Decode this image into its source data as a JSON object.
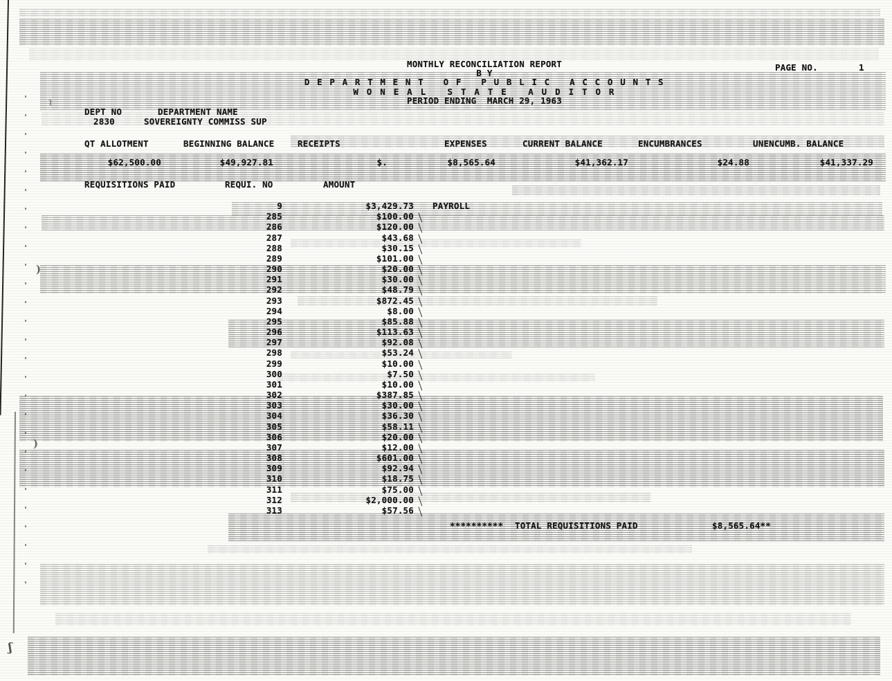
{
  "header": {
    "title": "MONTHLY RECONCILIATION REPORT",
    "by_line": "B Y",
    "department_line": "D E P A R T M E N T   O F   P U B L I C   A C C O U N T S",
    "auditor_line": "W O N E A L   S T A T E   A U D I T O R",
    "period_line": "PERIOD ENDING  MARCH 29, 1963",
    "page_no_label": "PAGE NO.",
    "page_no": "1"
  },
  "department": {
    "dept_no_label": "DEPT NO",
    "dept_name_label": "DEPARTMENT NAME",
    "dept_no": "2830",
    "dept_name": "SOVEREIGNTY COMMISS SUP"
  },
  "summary": {
    "columns": [
      {
        "label": "QT ALLOTMENT",
        "value": "$62,500.00"
      },
      {
        "label": "BEGINNING BALANCE",
        "value": "$49,927.81"
      },
      {
        "label": "RECEIPTS",
        "value": "$."
      },
      {
        "label": "EXPENSES",
        "value": "$8,565.64"
      },
      {
        "label": "CURRENT BALANCE",
        "value": "$41,362.17"
      },
      {
        "label": "ENCUMBRANCES",
        "value": "$24.88"
      },
      {
        "label": "UNENCUMB. BALANCE",
        "value": "$41,337.29"
      }
    ]
  },
  "requisitions": {
    "section_label": "REQUISITIONS PAID",
    "no_header": "REQUI. NO",
    "amount_header": "AMOUNT",
    "rows": [
      {
        "no": "9",
        "amount": "$3,429.73",
        "note": "PAYROLL",
        "tick": false
      },
      {
        "no": "285",
        "amount": "$100.00",
        "note": "",
        "tick": true
      },
      {
        "no": "286",
        "amount": "$120.00",
        "note": "",
        "tick": true
      },
      {
        "no": "287",
        "amount": "$43.68",
        "note": "",
        "tick": true
      },
      {
        "no": "288",
        "amount": "$30.15",
        "note": "",
        "tick": true
      },
      {
        "no": "289",
        "amount": "$101.00",
        "note": "",
        "tick": true
      },
      {
        "no": "290",
        "amount": "$20.00",
        "note": "",
        "tick": true
      },
      {
        "no": "291",
        "amount": "$30.00",
        "note": "",
        "tick": true
      },
      {
        "no": "292",
        "amount": "$48.79",
        "note": "",
        "tick": true
      },
      {
        "no": "293",
        "amount": "$872.45",
        "note": "",
        "tick": true
      },
      {
        "no": "294",
        "amount": "$8.00",
        "note": "",
        "tick": true
      },
      {
        "no": "295",
        "amount": "$85.88",
        "note": "",
        "tick": true
      },
      {
        "no": "296",
        "amount": "$113.63",
        "note": "",
        "tick": true
      },
      {
        "no": "297",
        "amount": "$92.08",
        "note": "",
        "tick": true
      },
      {
        "no": "298",
        "amount": "$53.24",
        "note": "",
        "tick": true
      },
      {
        "no": "299",
        "amount": "$10.00",
        "note": "",
        "tick": true
      },
      {
        "no": "300",
        "amount": "$7.50",
        "note": "",
        "tick": true
      },
      {
        "no": "301",
        "amount": "$10.00",
        "note": "",
        "tick": true
      },
      {
        "no": "302",
        "amount": "$387.85",
        "note": "",
        "tick": true
      },
      {
        "no": "303",
        "amount": "$30.00",
        "note": "",
        "tick": true
      },
      {
        "no": "304",
        "amount": "$36.30",
        "note": "",
        "tick": true
      },
      {
        "no": "305",
        "amount": "$58.11",
        "note": "",
        "tick": true
      },
      {
        "no": "306",
        "amount": "$20.00",
        "note": "",
        "tick": true
      },
      {
        "no": "307",
        "amount": "$12.00",
        "note": "",
        "tick": true
      },
      {
        "no": "308",
        "amount": "$601.00",
        "note": "",
        "tick": true
      },
      {
        "no": "309",
        "amount": "$92.94",
        "note": "",
        "tick": true
      },
      {
        "no": "310",
        "amount": "$18.75",
        "note": "",
        "tick": true
      },
      {
        "no": "311",
        "amount": "$75.00",
        "note": "",
        "tick": true
      },
      {
        "no": "312",
        "amount": "$2,000.00",
        "note": "",
        "tick": true
      },
      {
        "no": "313",
        "amount": "$57.56",
        "note": "",
        "tick": true
      }
    ],
    "total_stars": "**********",
    "total_label": "TOTAL REQUISITIONS PAID",
    "total_amount": "$8,565.64**"
  }
}
